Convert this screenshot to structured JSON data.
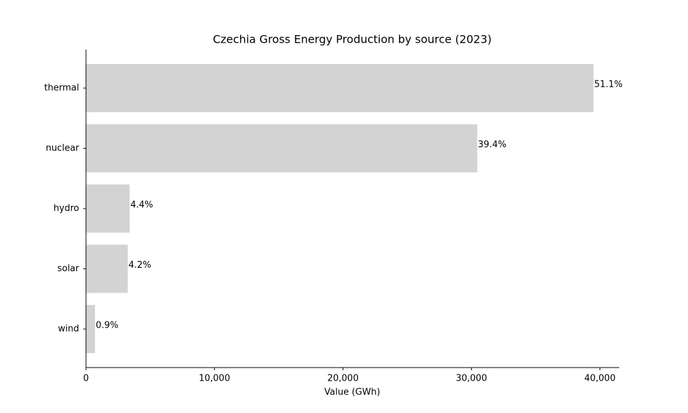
{
  "chart_data": {
    "type": "barh",
    "title": "Czechia Gross Energy Production by source (2023)",
    "xlabel": "Value (GWh)",
    "categories": [
      "thermal",
      "nuclear",
      "hydro",
      "solar",
      "wind"
    ],
    "values": [
      39500,
      30450,
      3400,
      3250,
      700
    ],
    "data_labels": [
      "51.1%",
      "39.4%",
      "4.4%",
      "4.2%",
      "0.9%"
    ],
    "color": "#d3d3d3",
    "xlim": [
      0,
      41500
    ],
    "xticks": [
      0,
      {
        "value": 10000,
        "label": "10,000"
      },
      {
        "value": 20000,
        "label": "20,000"
      },
      {
        "value": 30000,
        "label": "30,000"
      },
      {
        "value": 40000,
        "label": "40,000"
      }
    ]
  }
}
